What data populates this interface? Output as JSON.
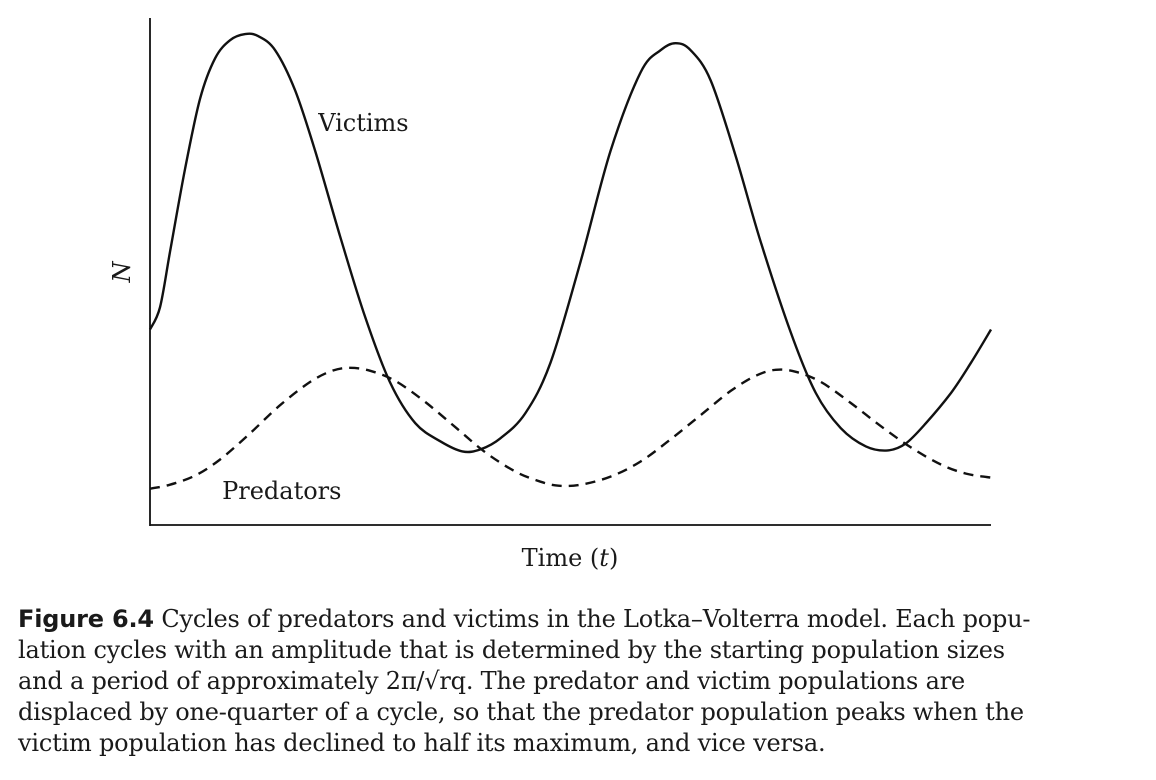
{
  "chart_data": {
    "type": "line",
    "title": "",
    "xlabel": "Time (t)",
    "ylabel": "N",
    "xlim": [
      0,
      840
    ],
    "ylim": [
      0,
      500
    ],
    "grid": false,
    "legend": "none",
    "series": [
      {
        "name": "Victims",
        "style": "solid",
        "color": "#111111",
        "points": [
          [
            0,
            193
          ],
          [
            10,
            215
          ],
          [
            20,
            270
          ],
          [
            35,
            352
          ],
          [
            50,
            422
          ],
          [
            65,
            462
          ],
          [
            80,
            480
          ],
          [
            95,
            486
          ],
          [
            108,
            484
          ],
          [
            125,
            470
          ],
          [
            145,
            430
          ],
          [
            165,
            370
          ],
          [
            190,
            285
          ],
          [
            215,
            205
          ],
          [
            240,
            140
          ],
          [
            265,
            100
          ],
          [
            290,
            82
          ],
          [
            312,
            72
          ],
          [
            330,
            74
          ],
          [
            350,
            85
          ],
          [
            375,
            110
          ],
          [
            400,
            160
          ],
          [
            430,
            260
          ],
          [
            460,
            370
          ],
          [
            490,
            448
          ],
          [
            510,
            470
          ],
          [
            525,
            477
          ],
          [
            540,
            470
          ],
          [
            560,
            440
          ],
          [
            585,
            365
          ],
          [
            610,
            280
          ],
          [
            640,
            190
          ],
          [
            665,
            130
          ],
          [
            690,
            95
          ],
          [
            715,
            77
          ],
          [
            737,
            73
          ],
          [
            755,
            80
          ],
          [
            775,
            100
          ],
          [
            800,
            130
          ],
          [
            820,
            160
          ],
          [
            840,
            193
          ]
        ]
      },
      {
        "name": "Predators",
        "style": "dashed",
        "color": "#111111",
        "points": [
          [
            0,
            35
          ],
          [
            20,
            39
          ],
          [
            45,
            48
          ],
          [
            70,
            64
          ],
          [
            100,
            90
          ],
          [
            130,
            118
          ],
          [
            160,
            141
          ],
          [
            182,
            152
          ],
          [
            200,
            155
          ],
          [
            220,
            152
          ],
          [
            245,
            142
          ],
          [
            275,
            121
          ],
          [
            305,
            96
          ],
          [
            335,
            71
          ],
          [
            365,
            52
          ],
          [
            390,
            42
          ],
          [
            408,
            38
          ],
          [
            430,
            39
          ],
          [
            460,
            47
          ],
          [
            490,
            62
          ],
          [
            520,
            84
          ],
          [
            550,
            108
          ],
          [
            580,
            132
          ],
          [
            605,
            147
          ],
          [
            625,
            153
          ],
          [
            645,
            151
          ],
          [
            670,
            141
          ],
          [
            700,
            120
          ],
          [
            730,
            97
          ],
          [
            760,
            76
          ],
          [
            790,
            59
          ],
          [
            815,
            50
          ],
          [
            840,
            46
          ]
        ]
      }
    ],
    "annotations": [
      {
        "text": "Victims",
        "at": [
          168,
          390
        ]
      },
      {
        "text": "Predators",
        "at": [
          72,
          25
        ]
      }
    ]
  },
  "caption": {
    "label": "Figure 6.4",
    "lines": [
      "Cycles of predators and victims in the Lotka–Volterra model. Each popu-",
      "lation cycles with an amplitude that is determined by the starting population sizes",
      "and a period of approximately 2π/√rq.  The predator and victim populations are",
      "displaced by one-quarter of a cycle, so that the predator population peaks when the",
      "victim population has declined to half its maximum, and vice versa."
    ]
  }
}
